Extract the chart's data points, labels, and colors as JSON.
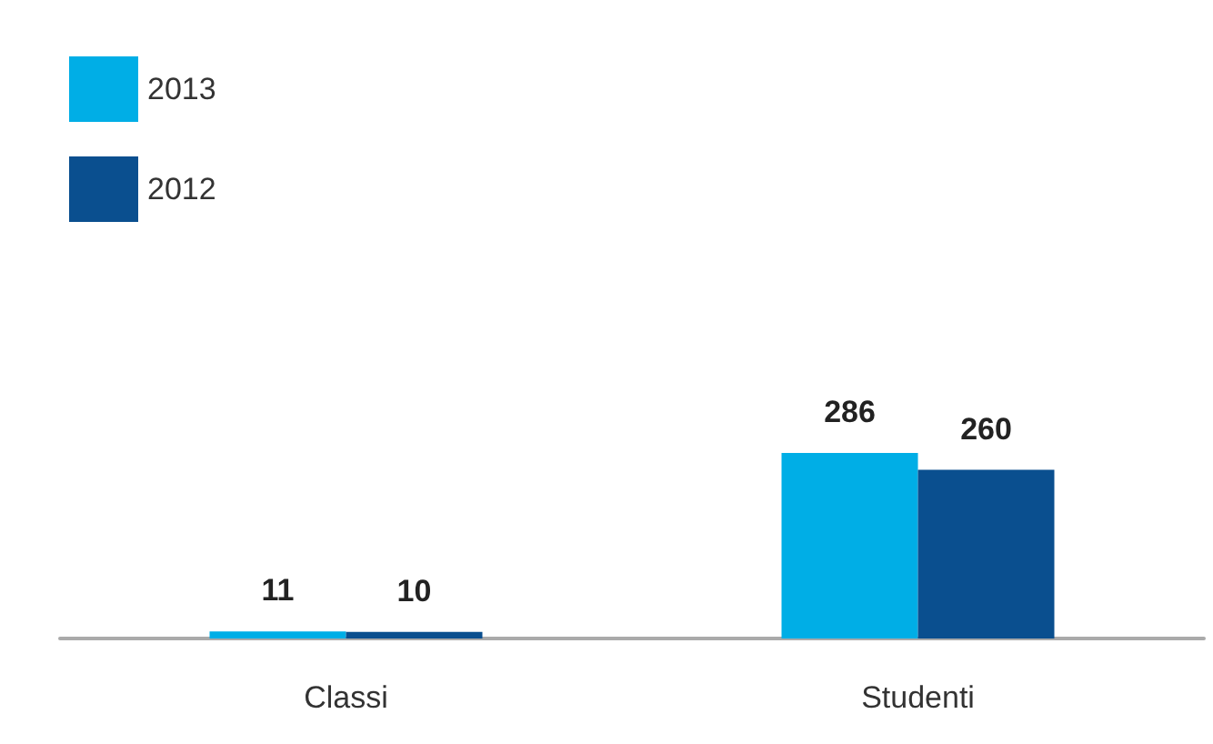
{
  "chart_data": {
    "type": "bar",
    "categories": [
      "Classi",
      "Studenti"
    ],
    "series": [
      {
        "name": "2013",
        "color": "#00aee6",
        "values": [
          11,
          286
        ]
      },
      {
        "name": "2012",
        "color": "#0a4f8f",
        "values": [
          10,
          260
        ]
      }
    ],
    "data_labels": true,
    "legend": "top left"
  }
}
